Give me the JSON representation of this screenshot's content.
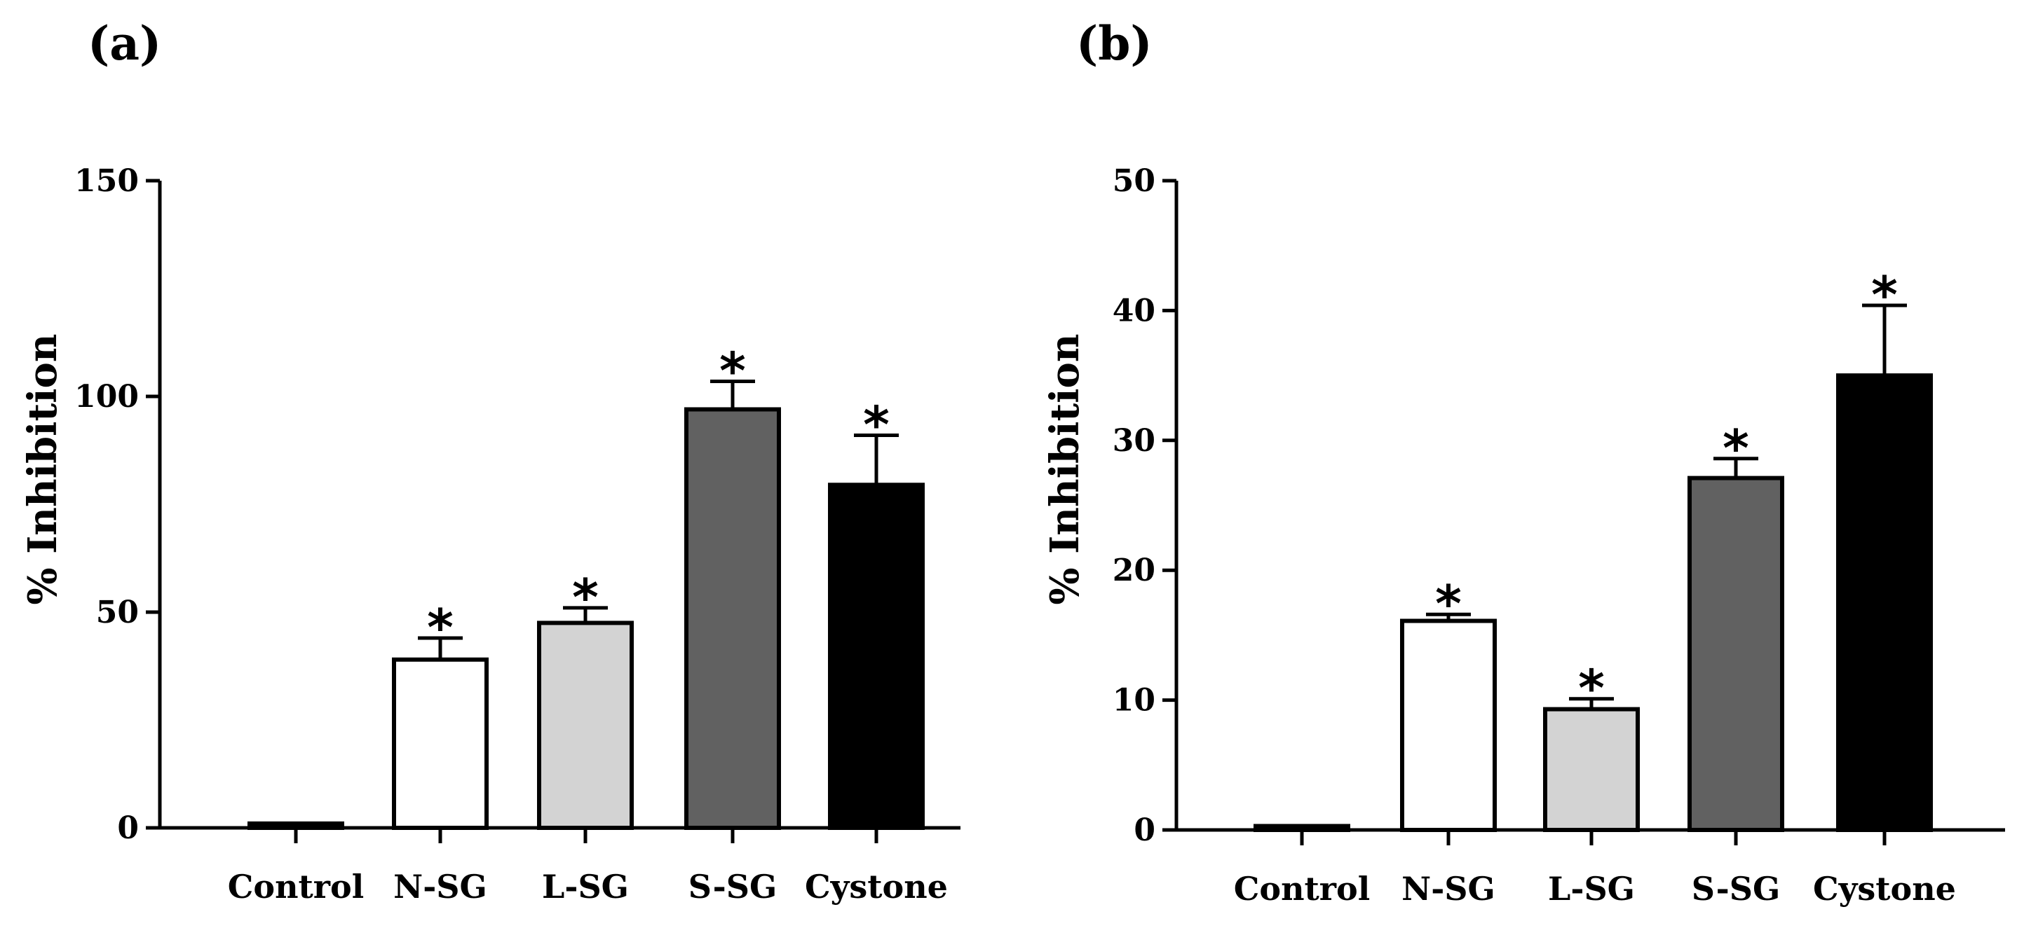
{
  "chart_data": [
    {
      "panel": "(a)",
      "type": "bar",
      "categories": [
        "Control",
        "N-SG",
        "L-SG",
        "S-SG",
        "Cystone"
      ],
      "values": [
        1,
        39,
        47.5,
        97,
        79.5
      ],
      "errors": [
        0,
        5,
        3.5,
        6.5,
        11.5
      ],
      "significance": [
        "",
        "*",
        "*",
        "*",
        "*"
      ],
      "ylabel": "% Inhibition",
      "xlabel": "",
      "ylim": [
        0,
        150
      ],
      "yticks": [
        "0",
        "50",
        "100",
        "150"
      ],
      "bar_colors": [
        "#000000",
        "#ffffff",
        "#d3d3d3",
        "#616161",
        "#000000"
      ]
    },
    {
      "panel": "(b)",
      "type": "bar",
      "categories": [
        "Control",
        "N-SG",
        "L-SG",
        "S-SG",
        "Cystone"
      ],
      "values": [
        0.3,
        16.1,
        9.3,
        27.1,
        35
      ],
      "errors": [
        0,
        0.5,
        0.8,
        1.5,
        5.4
      ],
      "significance": [
        "",
        "*",
        "*",
        "*",
        "*"
      ],
      "ylabel": "% Inhibition",
      "xlabel": "",
      "ylim": [
        0,
        50
      ],
      "yticks": [
        "0",
        "10",
        "20",
        "30",
        "40",
        "50"
      ],
      "bar_colors": [
        "#000000",
        "#ffffff",
        "#d3d3d3",
        "#616161",
        "#000000"
      ]
    }
  ]
}
